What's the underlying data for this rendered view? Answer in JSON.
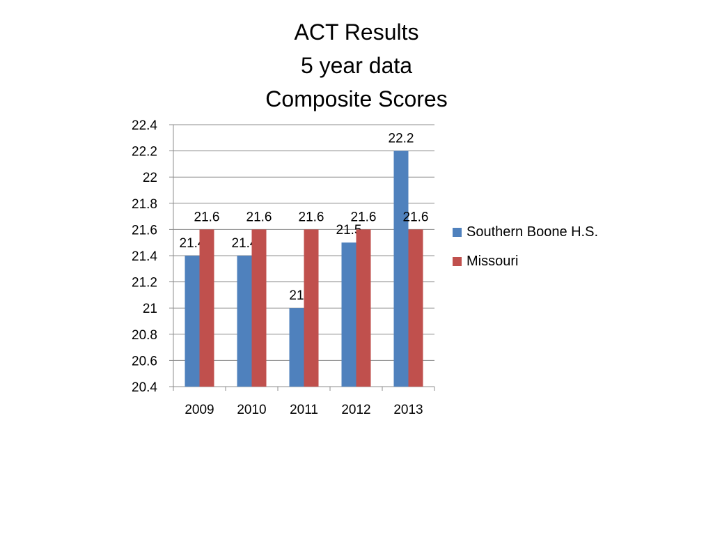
{
  "chart_data": {
    "type": "bar",
    "title_lines": [
      "ACT Results",
      "5 year data",
      "Composite Scores"
    ],
    "categories": [
      "2009",
      "2010",
      "2011",
      "2012",
      "2013"
    ],
    "series": [
      {
        "name": "Southern Boone H.S.",
        "values": [
          21.4,
          21.4,
          21.0,
          21.5,
          22.2
        ],
        "color": "#4F81BD"
      },
      {
        "name": "Missouri",
        "values": [
          21.6,
          21.6,
          21.6,
          21.6,
          21.6
        ],
        "color": "#C0504D"
      }
    ],
    "ylim": [
      20.4,
      22.4
    ],
    "yticks": [
      "22.4",
      "22.2",
      "22",
      "21.8",
      "21.6",
      "21.4",
      "21.2",
      "21",
      "20.8",
      "20.6",
      "20.4"
    ],
    "data_labels": [
      [
        "21.4",
        "21.4",
        "21",
        "21.5",
        "22.2"
      ],
      [
        "21.6",
        "21.6",
        "21.6",
        "21.6",
        "21.6"
      ]
    ],
    "grid": true,
    "legend_position": "right",
    "xlabel": "",
    "ylabel": ""
  }
}
